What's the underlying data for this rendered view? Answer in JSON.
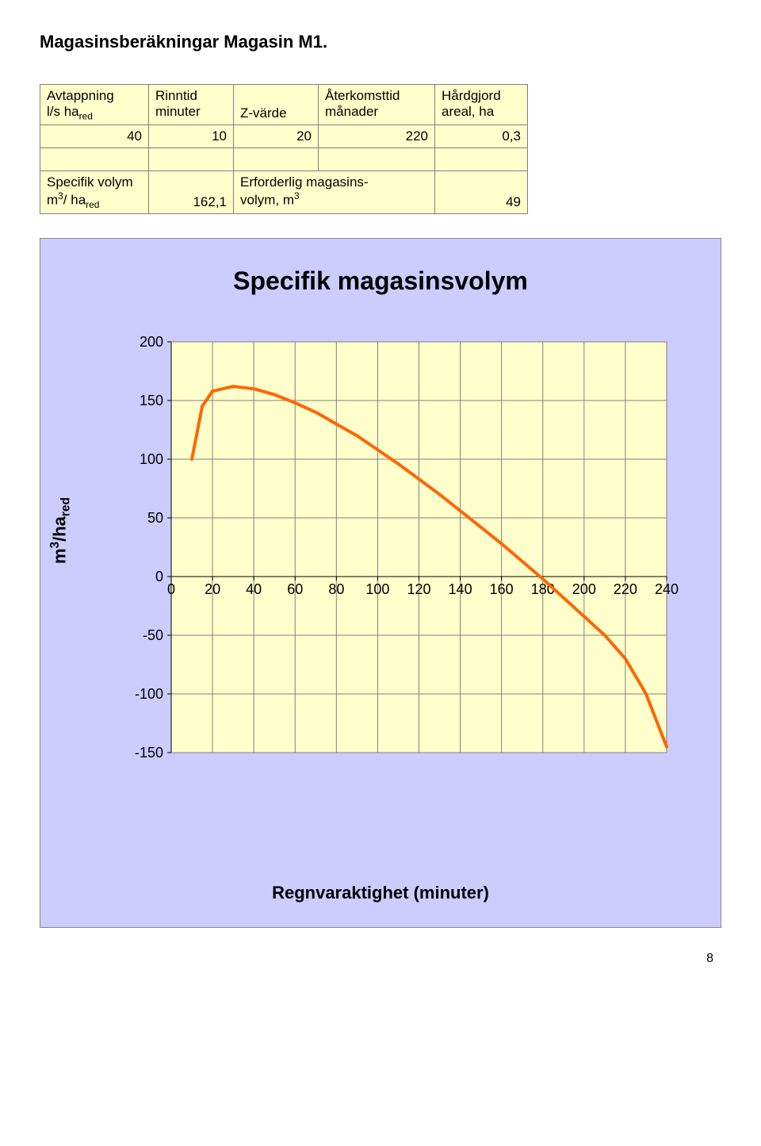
{
  "page_title": "Magasinsberäkningar Magasin M1.",
  "page_number": "8",
  "table1": {
    "headers": {
      "c0_line1": "Avtappning",
      "c0_line2_prefix": "l/s ha",
      "c0_line2_sub": "red",
      "c1_line1": "Rinntid",
      "c1_line2": "minuter",
      "c2": "Z-värde",
      "c3_line1": "Återkomsttid",
      "c3_line2": "månader",
      "c4_line1": "Hårdgjord",
      "c4_line2": "areal, ha"
    },
    "row": {
      "c0": "40",
      "c1": "10",
      "c2": "20",
      "c3": "220",
      "c4": "0,3"
    }
  },
  "table2": {
    "headers": {
      "c0_line1": "Specifik volym",
      "c0_line2_prefix": "m",
      "c0_line2_sup": "3",
      "c0_line2_mid": "/ ha",
      "c0_line2_sub": "red",
      "c2_line1": "Erforderlig magasins-",
      "c2_line2_prefix": "volym, m",
      "c2_line2_sup": "3"
    },
    "row": {
      "c1": "162,1",
      "c3": "49"
    }
  },
  "chart": {
    "title": "Specifik magasinsvolym",
    "y_label_prefix": "m",
    "y_label_sup": "3",
    "y_label_mid": "/ha",
    "y_label_sub": "red",
    "x_label": "Regnvaraktighet (minuter)",
    "background_color": "#ccccff",
    "plot_bg_color": "#ffffcc",
    "grid_color": "#808080",
    "line_color": "#ff6600",
    "line_width": 4,
    "ylim": [
      -150,
      200
    ],
    "xlim": [
      0,
      240
    ],
    "yticks": [
      -150,
      -100,
      -50,
      0,
      50,
      100,
      150,
      200
    ],
    "xticks": [
      0,
      20,
      40,
      60,
      80,
      100,
      120,
      140,
      160,
      180,
      200,
      220,
      240
    ],
    "series": [
      [
        10,
        100
      ],
      [
        15,
        145
      ],
      [
        20,
        158
      ],
      [
        30,
        162
      ],
      [
        40,
        160
      ],
      [
        50,
        155
      ],
      [
        60,
        148
      ],
      [
        70,
        140
      ],
      [
        80,
        130
      ],
      [
        90,
        120
      ],
      [
        100,
        108
      ],
      [
        110,
        96
      ],
      [
        120,
        83
      ],
      [
        130,
        70
      ],
      [
        140,
        56
      ],
      [
        150,
        42
      ],
      [
        160,
        28
      ],
      [
        170,
        13
      ],
      [
        180,
        -2
      ],
      [
        190,
        -18
      ],
      [
        200,
        -34
      ],
      [
        210,
        -50
      ],
      [
        220,
        -70
      ],
      [
        230,
        -100
      ],
      [
        240,
        -145
      ]
    ],
    "tick_fontsize": 18
  }
}
